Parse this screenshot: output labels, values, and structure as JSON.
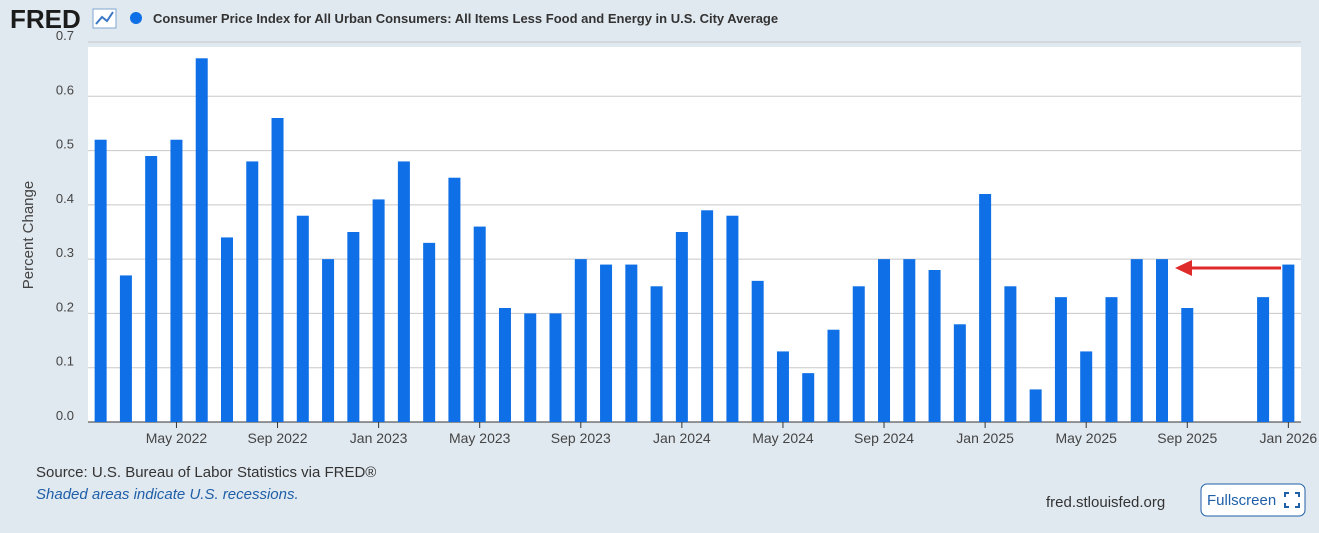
{
  "branding": {
    "logo": "FRED"
  },
  "chart_data": {
    "type": "bar",
    "y_label": "Percent Change",
    "categories": [
      null,
      null,
      null,
      "May 2022",
      null,
      null,
      null,
      "Sep 2022",
      null,
      null,
      null,
      "Jan 2023",
      null,
      null,
      null,
      "May 2023",
      null,
      null,
      null,
      "Sep 2023",
      null,
      null,
      null,
      "Jan 2024",
      null,
      null,
      null,
      "May 2024",
      null,
      null,
      null,
      "Sep 2024",
      null,
      null,
      null,
      "Jan 2025",
      null,
      null,
      null,
      "May 2025",
      null,
      null,
      null,
      "Sep 2025",
      null,
      null,
      null,
      "Jan 2026"
    ],
    "series": [
      {
        "name": "Consumer Price Index for All Urban Consumers: All Items Less Food and Energy in U.S. City Average",
        "color": "#0e6fe6",
        "values": [
          0.52,
          0.27,
          0.49,
          0.52,
          0.67,
          0.34,
          0.48,
          0.56,
          0.38,
          0.3,
          0.35,
          0.41,
          0.48,
          0.33,
          0.45,
          0.36,
          0.21,
          0.2,
          0.2,
          0.3,
          0.29,
          0.29,
          0.25,
          0.35,
          0.39,
          0.38,
          0.26,
          0.13,
          0.09,
          0.17,
          0.25,
          0.3,
          0.3,
          0.28,
          0.18,
          0.42,
          0.25,
          0.06,
          0.23,
          0.13,
          0.23,
          0.3,
          0.3,
          0.21,
          null,
          null,
          0.23,
          0.29
        ]
      }
    ],
    "ylim": [
      0,
      0.7
    ],
    "yticks": [
      {
        "value": 0,
        "label": "0.0"
      },
      0.1,
      0.2,
      0.3,
      0.4,
      0.5,
      0.6,
      0.7
    ],
    "grid": true
  },
  "footer": {
    "source": "Source: U.S. Bureau of Labor Statistics via FRED®",
    "note": "Shaded areas indicate U.S. recessions.",
    "url": "fred.stlouisfed.org",
    "button": "Fullscreen"
  }
}
